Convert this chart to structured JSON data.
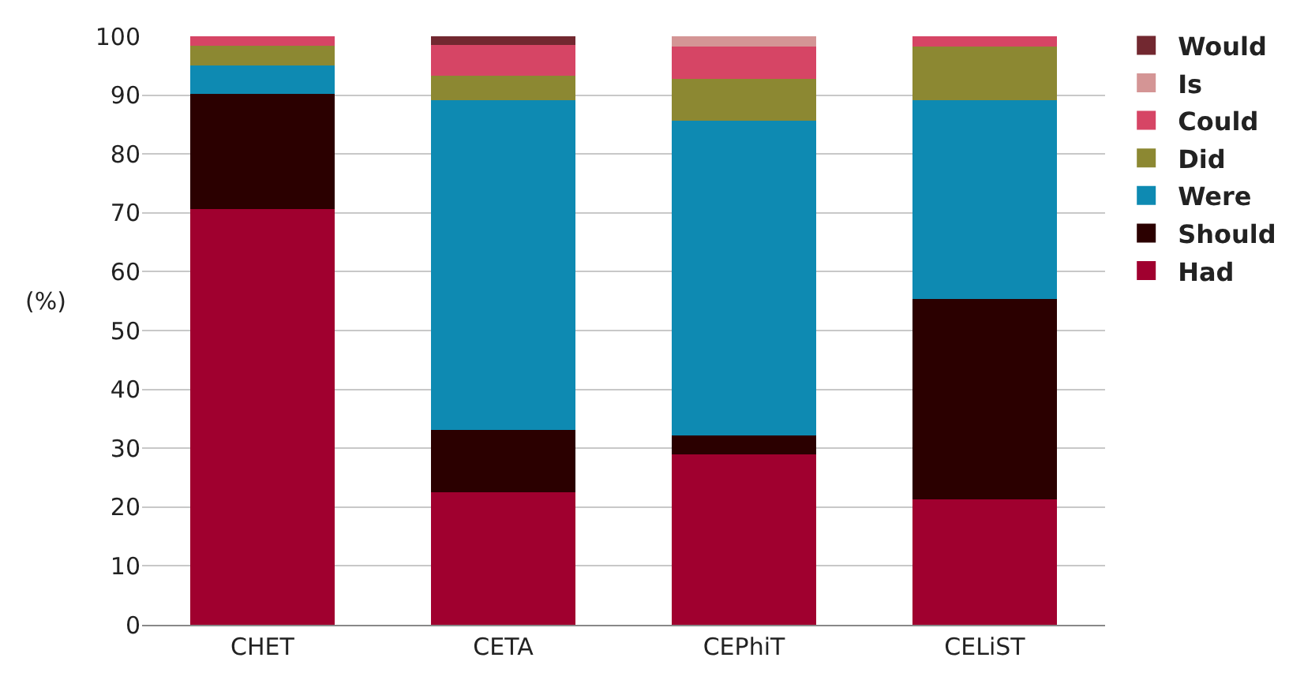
{
  "chart_data": {
    "type": "bar",
    "stacked": true,
    "ylabel": "(%)",
    "categories": [
      "CHET",
      "CETA",
      "CEPhiT",
      "CELiST"
    ],
    "ylim": [
      0,
      100
    ],
    "yticks": [
      0,
      10,
      20,
      30,
      40,
      50,
      60,
      70,
      80,
      90,
      100
    ],
    "grid": "y",
    "legend": "right",
    "series": [
      {
        "name": "Had",
        "color": "#a0002f",
        "values": [
          70.7,
          22.5,
          29.0,
          21.3
        ]
      },
      {
        "name": "Should",
        "color": "#2b0000",
        "values": [
          19.5,
          10.6,
          3.2,
          34.0
        ]
      },
      {
        "name": "Were",
        "color": "#0e8ab2",
        "values": [
          4.9,
          56.1,
          53.4,
          33.9
        ]
      },
      {
        "name": "Did",
        "color": "#8c8832",
        "values": [
          3.3,
          4.1,
          7.2,
          9.0
        ]
      },
      {
        "name": "Could",
        "color": "#d64565",
        "values": [
          1.6,
          5.2,
          5.4,
          1.8
        ]
      },
      {
        "name": "Is",
        "color": "#d49595",
        "values": [
          null,
          null,
          1.8,
          null
        ]
      },
      {
        "name": "Would",
        "color": "#722830",
        "values": [
          null,
          1.5,
          null,
          null
        ]
      }
    ]
  }
}
